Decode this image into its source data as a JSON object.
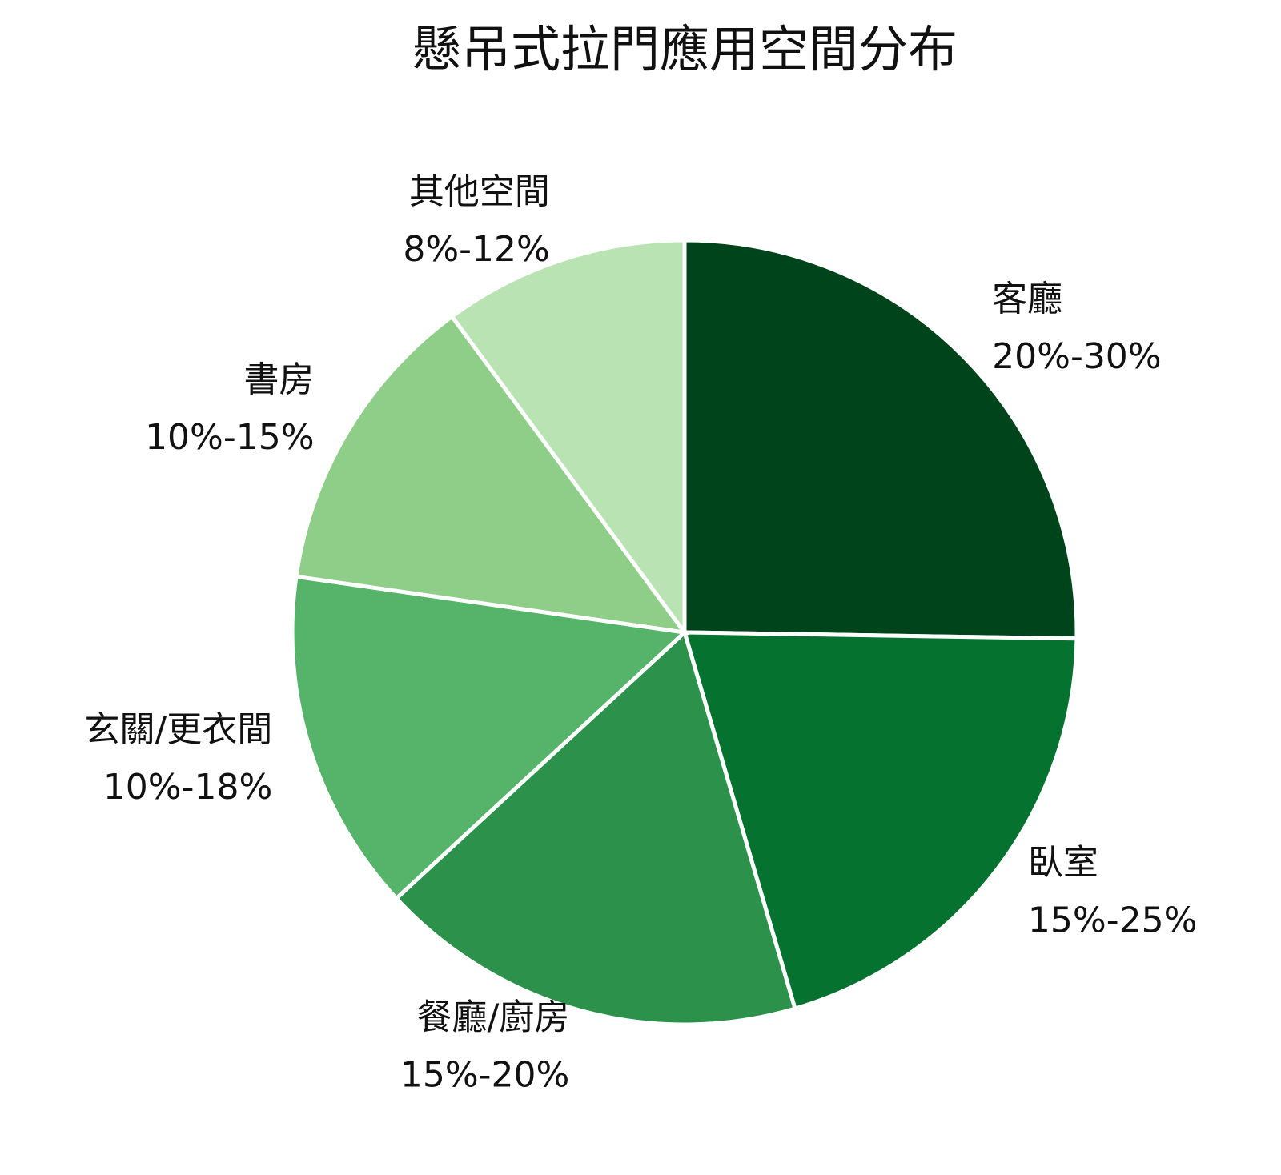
{
  "chart_data": {
    "type": "pie",
    "title": "懸吊式拉門應用空間分布",
    "categories": [
      "客廳",
      "臥室",
      "餐廳/廚房",
      "玄關/更衣間",
      "書房",
      "其他空間"
    ],
    "values": [
      25,
      20,
      17.5,
      14,
      12.5,
      10
    ],
    "value_labels": [
      "20%-30%",
      "15%-25%",
      "15%-20%",
      "10%-18%",
      "10%-15%",
      "8%-12%"
    ],
    "colors": [
      "#00441b",
      "#06722f",
      "#2b914b",
      "#56b46a",
      "#8fce89",
      "#b9e3b2"
    ]
  }
}
